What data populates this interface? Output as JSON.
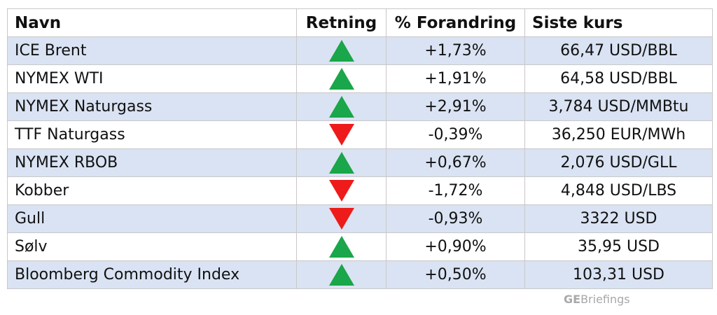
{
  "table": {
    "headers": {
      "name": "Navn",
      "direction": "Retning",
      "change": "% Forandring",
      "price": "Siste kurs"
    },
    "rows": [
      {
        "name": "ICE Brent",
        "direction": "up",
        "change": "+1,73%",
        "price": "66,47 USD/BBL"
      },
      {
        "name": "NYMEX WTI",
        "direction": "up",
        "change": "+1,91%",
        "price": "64,58 USD/BBL"
      },
      {
        "name": "NYMEX Naturgass",
        "direction": "up",
        "change": "+2,91%",
        "price": "3,784 USD/MMBtu"
      },
      {
        "name": "TTF Naturgass",
        "direction": "down",
        "change": "-0,39%",
        "price": "36,250 EUR/MWh"
      },
      {
        "name": "NYMEX RBOB",
        "direction": "up",
        "change": "+0,67%",
        "price": "2,076 USD/GLL"
      },
      {
        "name": "Kobber",
        "direction": "down",
        "change": "-1,72%",
        "price": "4,848 USD/LBS"
      },
      {
        "name": "Gull",
        "direction": "down",
        "change": "-0,93%",
        "price": "3322 USD"
      },
      {
        "name": "Sølv",
        "direction": "up",
        "change": "+0,90%",
        "price": "35,95 USD"
      },
      {
        "name": "Bloomberg Commodity Index",
        "direction": "up",
        "change": "+0,50%",
        "price": "103,31 USD"
      }
    ]
  },
  "colors": {
    "up": "#1aa64a",
    "down": "#ee1b1b",
    "row_shade": "#dae3f3"
  },
  "icons": {
    "up": "triangle-up-icon",
    "down": "triangle-down-icon"
  },
  "brand": {
    "bold_part": "GE",
    "regular_part": "Briefings"
  }
}
